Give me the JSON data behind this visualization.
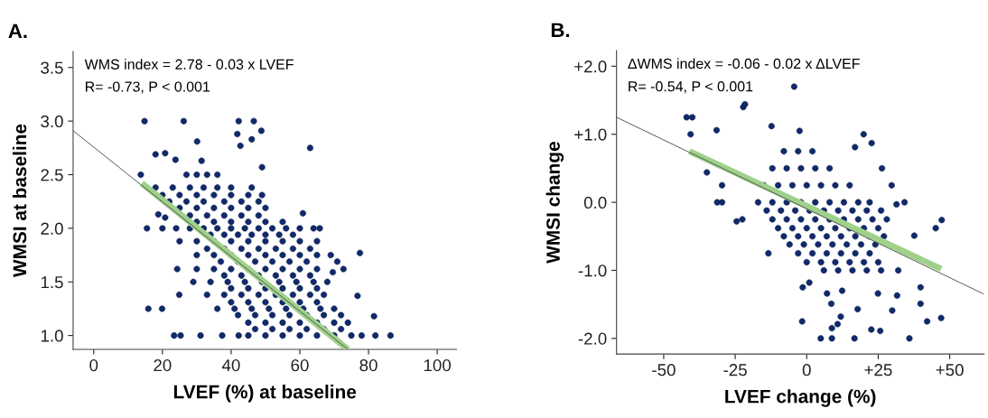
{
  "chart_data": [
    {
      "type": "scatter",
      "title": "A.",
      "xlabel": "LVEF (%) at baseline",
      "ylabel": "WMSI at baseline",
      "annotations": [
        "WMS index = 2.78 - 0.03 x LVEF",
        "R= -0.73, P < 0.001"
      ],
      "xlim": [
        -6,
        105.6
      ],
      "ylim": [
        0.87,
        3.65
      ],
      "xticks": [
        0,
        20,
        40,
        60,
        80,
        100
      ],
      "yticks": [
        {
          "value": 1.0,
          "label": "1.0"
        },
        {
          "value": 1.5,
          "label": "1.5"
        },
        {
          "value": 2.0,
          "label": "2.0"
        },
        {
          "value": 2.5,
          "label": "2.5"
        },
        {
          "value": 3.0,
          "label": "3.0"
        },
        {
          "value": 3.5,
          "label": "3.5"
        }
      ],
      "grid": false,
      "marker": "circle",
      "series": [
        {
          "color": "#102a6b",
          "x": [
            14.8,
            26.2,
            42.2,
            46.6,
            41.8,
            48.8,
            46,
            42.7,
            30.1,
            63,
            18,
            20.8,
            23.8,
            31.4,
            13.7,
            49,
            60.9,
            65.8,
            77.5,
            76.8,
            81.6,
            86.4,
            82,
            15.9,
            19.9,
            23.4,
            25.3,
            31.1,
            24.9,
            72.7,
            70.9,
            69,
            69.6,
            15.5,
            18.8,
            20.8,
            30,
            24.3,
            37.4,
            42.2,
            27,
            30,
            33,
            36,
            18,
            23,
            28,
            32,
            36,
            40,
            46,
            20,
            25,
            30,
            35,
            40,
            45,
            49,
            22,
            27,
            32,
            38,
            43,
            48,
            25,
            30,
            35,
            40,
            45,
            50,
            28,
            33,
            38,
            43,
            48,
            30,
            35,
            40,
            45,
            50,
            55,
            20,
            24,
            28,
            32,
            36,
            40,
            44,
            48,
            52,
            56,
            60,
            64,
            34,
            38,
            42,
            46,
            50,
            54,
            58,
            25,
            30,
            35,
            40,
            45,
            50,
            55,
            60,
            65,
            33,
            38,
            43,
            48,
            53,
            58,
            63,
            30,
            35,
            40,
            45,
            50,
            55,
            60,
            65,
            37,
            42,
            47,
            52,
            57,
            62,
            35,
            40,
            45,
            50,
            55,
            60,
            65,
            38,
            43,
            48,
            53,
            58,
            63,
            29,
            34,
            39,
            44,
            49,
            54,
            59,
            64,
            68,
            40,
            45,
            50,
            55,
            60,
            65,
            33,
            38,
            43,
            48,
            53,
            58,
            63,
            67,
            40,
            45,
            50,
            55,
            60,
            65,
            36,
            41,
            46,
            51,
            56,
            61,
            66,
            70,
            42,
            47,
            52,
            57,
            62,
            67,
            72,
            45,
            50,
            55,
            60,
            65,
            70,
            74,
            47,
            52,
            57,
            62,
            67,
            72,
            45,
            50,
            55,
            60,
            65,
            70,
            75,
            78
          ],
          "values": [
            3.0,
            3.0,
            3.0,
            3.0,
            2.88,
            2.91,
            2.83,
            2.77,
            2.81,
            2.75,
            2.69,
            2.7,
            2.64,
            2.63,
            2.5,
            2.57,
            2.14,
            2.0,
            1.77,
            1.37,
            1.18,
            1.0,
            1.0,
            1.25,
            1.25,
            1.0,
            1.0,
            1.0,
            1.38,
            1.62,
            1.69,
            1.75,
            1.59,
            2.0,
            2.13,
            2.1,
            1.62,
            1.62,
            1.0,
            1.0,
            2.5,
            2.5,
            2.5,
            2.5,
            2.38,
            2.38,
            2.38,
            2.38,
            2.38,
            2.38,
            2.38,
            2.31,
            2.31,
            2.31,
            2.31,
            2.31,
            2.31,
            2.31,
            2.25,
            2.25,
            2.25,
            2.25,
            2.25,
            2.25,
            2.19,
            2.19,
            2.19,
            2.19,
            2.19,
            2.19,
            2.12,
            2.12,
            2.12,
            2.12,
            2.12,
            2.06,
            2.06,
            2.06,
            2.06,
            2.06,
            2.06,
            2.0,
            2.0,
            2.0,
            2.0,
            2.0,
            2.0,
            2.0,
            2.0,
            2.0,
            2.0,
            2.0,
            2.0,
            1.94,
            1.94,
            1.94,
            1.94,
            1.94,
            1.94,
            1.94,
            1.88,
            1.88,
            1.88,
            1.88,
            1.88,
            1.88,
            1.88,
            1.88,
            1.88,
            1.81,
            1.81,
            1.81,
            1.81,
            1.81,
            1.81,
            1.81,
            1.75,
            1.75,
            1.75,
            1.75,
            1.75,
            1.75,
            1.75,
            1.75,
            1.69,
            1.69,
            1.69,
            1.69,
            1.69,
            1.69,
            1.62,
            1.62,
            1.62,
            1.62,
            1.62,
            1.62,
            1.62,
            1.56,
            1.56,
            1.56,
            1.56,
            1.56,
            1.56,
            1.5,
            1.5,
            1.5,
            1.5,
            1.5,
            1.5,
            1.5,
            1.5,
            1.5,
            1.44,
            1.44,
            1.44,
            1.44,
            1.44,
            1.44,
            1.38,
            1.38,
            1.38,
            1.38,
            1.38,
            1.38,
            1.38,
            1.38,
            1.31,
            1.31,
            1.31,
            1.31,
            1.31,
            1.31,
            1.25,
            1.25,
            1.25,
            1.25,
            1.25,
            1.25,
            1.25,
            1.25,
            1.19,
            1.19,
            1.19,
            1.19,
            1.19,
            1.19,
            1.19,
            1.12,
            1.12,
            1.12,
            1.12,
            1.12,
            1.12,
            1.12,
            1.06,
            1.06,
            1.06,
            1.06,
            1.06,
            1.06,
            1.0,
            1.0,
            1.0,
            1.0,
            1.0,
            1.0,
            1.0,
            1.0
          ]
        },
        {
          "type": "line",
          "color": "#555555",
          "marker": "none",
          "x": [
            -6,
            74
          ],
          "values": [
            2.91,
            0.87
          ]
        },
        {
          "type": "line",
          "color": "#9fd18b",
          "marker": "none",
          "x": [
            14,
            74
          ],
          "values": [
            2.42,
            0.87
          ]
        }
      ]
    },
    {
      "type": "scatter",
      "title": "B.",
      "xlabel": "LVEF change (%)",
      "ylabel": "WMSI change",
      "annotations": [
        "ΔWMS index = -0.06 - 0.02 x ΔLVEF",
        "R= -0.54, P < 0.001"
      ],
      "xlim": [
        -66.5,
        62
      ],
      "ylim": [
        -2.23,
        2.23
      ],
      "xticks": [
        {
          "value": -50,
          "label": "-50"
        },
        {
          "value": -25,
          "label": "-25"
        },
        {
          "value": 0,
          "label": "0"
        },
        {
          "value": 25,
          "label": "+25"
        },
        {
          "value": 50,
          "label": "+50"
        }
      ],
      "yticks": [
        {
          "value": -2,
          "label": "-2.0"
        },
        {
          "value": -1,
          "label": "-1.0"
        },
        {
          "value": 0,
          "label": "0.0"
        },
        {
          "value": 1,
          "label": "+1.0"
        },
        {
          "value": 2,
          "label": "+2.0"
        }
      ],
      "grid": false,
      "marker": "circle",
      "series": [
        {
          "color": "#102a6b",
          "x": [
            -4.4,
            -22.2,
            -21.6,
            -42,
            -40,
            -40.6,
            -31.5,
            -12.3,
            -2.5,
            19.9,
            22.7,
            16.9,
            -34.9,
            -29.6,
            -31.3,
            -29.6,
            -24.5,
            -22.5,
            -13.4,
            26.3,
            29.7,
            34.2,
            31.4,
            47.2,
            45.1,
            37.6,
            -1.4,
            0.9,
            -1.6,
            4.9,
            8.8,
            16.7,
            35.9,
            8.8,
            10.8,
            11.9,
            8.6,
            22.6,
            25.7,
            29.9,
            42.1,
            47,
            39.8,
            39.8,
            31.6,
            17.8,
            7.1,
            12.4,
            24.9,
            -8,
            -3,
            2,
            -12,
            -7,
            -2,
            3,
            8,
            -15,
            -10,
            -5,
            0,
            5,
            10,
            15,
            -17,
            -12,
            -7,
            -2,
            3,
            8,
            13,
            18,
            22,
            -14,
            -9,
            -4,
            1,
            6,
            11,
            16,
            21,
            26,
            -12,
            -7,
            -2,
            3,
            8,
            13,
            18,
            23,
            28,
            -10,
            -5,
            0,
            5,
            10,
            15,
            20,
            25,
            -8,
            -3,
            2,
            7,
            12,
            17,
            22,
            27,
            -6,
            -1,
            4,
            9,
            14,
            19,
            24,
            -3,
            2,
            7,
            12,
            17,
            22,
            0,
            5,
            10,
            15,
            20,
            25,
            6,
            11,
            16,
            21,
            26,
            32
          ],
          "values": [
            1.7,
            1.4,
            1.44,
            1.25,
            1.25,
            1.0,
            1.06,
            1.12,
            1.05,
            1.0,
            0.87,
            0.81,
            0.44,
            0.25,
            0.0,
            0.0,
            -0.28,
            -0.25,
            -0.75,
            0.5,
            0.25,
            0.0,
            -0.03,
            -0.26,
            -0.38,
            -0.49,
            -1.25,
            -1.18,
            -1.75,
            -2.0,
            -2.0,
            -2.0,
            -2.0,
            -1.85,
            -1.79,
            -1.68,
            -1.49,
            -1.87,
            -1.89,
            -1.59,
            -1.75,
            -1.7,
            -1.25,
            -1.49,
            -1.37,
            -1.57,
            -1.34,
            -1.3,
            -1.34,
            0.75,
            0.75,
            0.75,
            0.5,
            0.5,
            0.5,
            0.5,
            0.5,
            0.25,
            0.25,
            0.25,
            0.25,
            0.25,
            0.25,
            0.25,
            0.0,
            0.0,
            0.0,
            0.0,
            0.0,
            0.0,
            0.0,
            0.0,
            0.0,
            -0.12,
            -0.12,
            -0.12,
            -0.12,
            -0.12,
            -0.12,
            -0.12,
            -0.12,
            -0.12,
            -0.25,
            -0.25,
            -0.25,
            -0.25,
            -0.25,
            -0.25,
            -0.25,
            -0.25,
            -0.25,
            -0.38,
            -0.38,
            -0.38,
            -0.38,
            -0.38,
            -0.38,
            -0.38,
            -0.38,
            -0.5,
            -0.5,
            -0.5,
            -0.5,
            -0.5,
            -0.5,
            -0.5,
            -0.5,
            -0.62,
            -0.62,
            -0.62,
            -0.62,
            -0.62,
            -0.62,
            -0.62,
            -0.75,
            -0.75,
            -0.75,
            -0.75,
            -0.75,
            -0.75,
            -0.88,
            -0.88,
            -0.88,
            -0.88,
            -0.88,
            -0.88,
            -1.0,
            -1.0,
            -1.0,
            -1.0,
            -1.0,
            -1.0
          ]
        },
        {
          "type": "line",
          "color": "#555555",
          "marker": "none",
          "x": [
            -66.5,
            62
          ],
          "values": [
            1.25,
            -1.35
          ]
        },
        {
          "type": "line",
          "color": "#9fd18b",
          "marker": "none",
          "x": [
            -41,
            47
          ],
          "values": [
            0.75,
            -0.98
          ]
        }
      ]
    }
  ]
}
